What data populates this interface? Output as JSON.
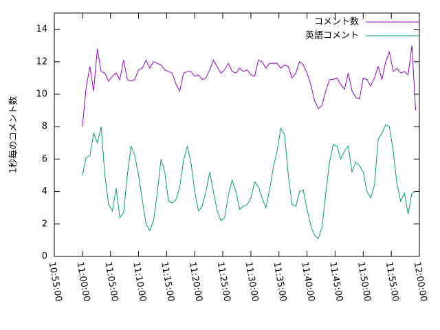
{
  "chart_data": {
    "type": "line",
    "ylabel": "1秒毎のコメント数",
    "x": [
      "11:00:00",
      "11:00:40",
      "11:01:20",
      "11:02:00",
      "11:02:40",
      "11:03:20",
      "11:04:00",
      "11:04:40",
      "11:05:20",
      "11:06:00",
      "11:06:40",
      "11:07:20",
      "11:08:00",
      "11:08:40",
      "11:09:20",
      "11:10:00",
      "11:10:40",
      "11:11:20",
      "11:12:00",
      "11:12:40",
      "11:13:20",
      "11:14:00",
      "11:14:40",
      "11:15:20",
      "11:16:00",
      "11:16:40",
      "11:17:20",
      "11:18:00",
      "11:18:40",
      "11:19:20",
      "11:20:00",
      "11:20:40",
      "11:21:20",
      "11:22:00",
      "11:22:40",
      "11:23:20",
      "11:24:00",
      "11:24:40",
      "11:25:20",
      "11:26:00",
      "11:26:40",
      "11:27:20",
      "11:28:00",
      "11:28:40",
      "11:29:20",
      "11:30:00",
      "11:30:40",
      "11:31:20",
      "11:32:00",
      "11:32:40",
      "11:33:20",
      "11:34:00",
      "11:34:40",
      "11:35:20",
      "11:36:00",
      "11:36:40",
      "11:37:20",
      "11:38:00",
      "11:38:40",
      "11:39:20",
      "11:40:00",
      "11:40:40",
      "11:41:20",
      "11:42:00",
      "11:42:40",
      "11:43:20",
      "11:44:00",
      "11:44:40",
      "11:45:20",
      "11:46:00",
      "11:46:40",
      "11:47:20",
      "11:48:00",
      "11:48:40",
      "11:49:20",
      "11:50:00",
      "11:50:40",
      "11:51:20",
      "11:52:00",
      "11:52:40",
      "11:53:20",
      "11:54:00",
      "11:54:40",
      "11:55:20",
      "11:56:00",
      "11:56:40",
      "11:57:20",
      "11:58:00",
      "11:58:40",
      "11:59:20"
    ],
    "series": [
      {
        "name": "コメント数",
        "color": "#9400d3",
        "values": [
          8.0,
          10.4,
          11.7,
          10.2,
          12.8,
          11.4,
          11.3,
          10.8,
          11.1,
          11.3,
          10.9,
          12.1,
          10.9,
          10.8,
          10.9,
          11.5,
          11.6,
          12.1,
          11.6,
          12.0,
          11.9,
          11.8,
          11.5,
          11.4,
          11.3,
          10.6,
          10.2,
          11.3,
          11.4,
          11.4,
          11.1,
          11.2,
          10.9,
          11.0,
          11.5,
          12.1,
          11.7,
          11.3,
          11.5,
          11.9,
          11.4,
          11.3,
          11.6,
          11.4,
          11.5,
          11.2,
          11.1,
          12.1,
          12.0,
          11.6,
          11.9,
          11.9,
          11.9,
          11.6,
          11.8,
          11.7,
          11.0,
          11.3,
          12.0,
          11.8,
          11.3,
          10.6,
          9.6,
          9.1,
          9.3,
          10.2,
          10.9,
          10.9,
          11.0,
          10.6,
          10.3,
          11.3,
          10.2,
          9.8,
          9.7,
          11.0,
          10.9,
          10.5,
          11.0,
          11.7,
          10.9,
          12.0,
          12.6,
          11.4,
          11.6,
          11.3,
          11.4,
          11.2,
          13.0,
          9.0
        ]
      },
      {
        "name": "英語コメント",
        "color": "#009e73",
        "values": [
          5.0,
          6.1,
          6.2,
          7.6,
          7.0,
          8.0,
          5.0,
          3.2,
          2.8,
          4.2,
          2.4,
          2.7,
          5.0,
          6.8,
          6.2,
          5.0,
          3.5,
          2.0,
          1.6,
          2.2,
          3.9,
          6.0,
          5.2,
          3.4,
          3.3,
          3.5,
          4.3,
          5.9,
          6.8,
          5.8,
          4.0,
          2.8,
          3.1,
          4.0,
          5.2,
          4.0,
          2.8,
          2.2,
          2.4,
          3.8,
          4.7,
          4.0,
          2.9,
          3.1,
          3.2,
          3.6,
          4.6,
          4.3,
          3.6,
          3.0,
          4.1,
          5.5,
          6.5,
          7.9,
          7.5,
          5.0,
          3.2,
          3.1,
          4.0,
          4.1,
          2.9,
          1.9,
          1.3,
          1.1,
          1.8,
          3.9,
          5.8,
          6.9,
          6.8,
          6.0,
          6.5,
          6.8,
          5.2,
          5.8,
          5.6,
          5.2,
          4.0,
          3.6,
          4.4,
          7.2,
          7.6,
          8.1,
          8.0,
          6.5,
          4.5,
          3.4,
          3.9,
          2.6,
          3.9,
          4.0
        ]
      }
    ],
    "xlim": [
      "10:55:00",
      "12:00:00"
    ],
    "xticks": [
      "10:55:00",
      "11:00:00",
      "11:05:00",
      "11:10:00",
      "11:15:00",
      "11:20:00",
      "11:25:00",
      "11:30:00",
      "11:35:00",
      "11:40:00",
      "11:45:00",
      "11:50:00",
      "11:55:00",
      "12:00:00"
    ],
    "ylim": [
      0,
      15
    ],
    "yticks": [
      0,
      2,
      4,
      6,
      8,
      10,
      12,
      14
    ],
    "legend": "top-right"
  }
}
